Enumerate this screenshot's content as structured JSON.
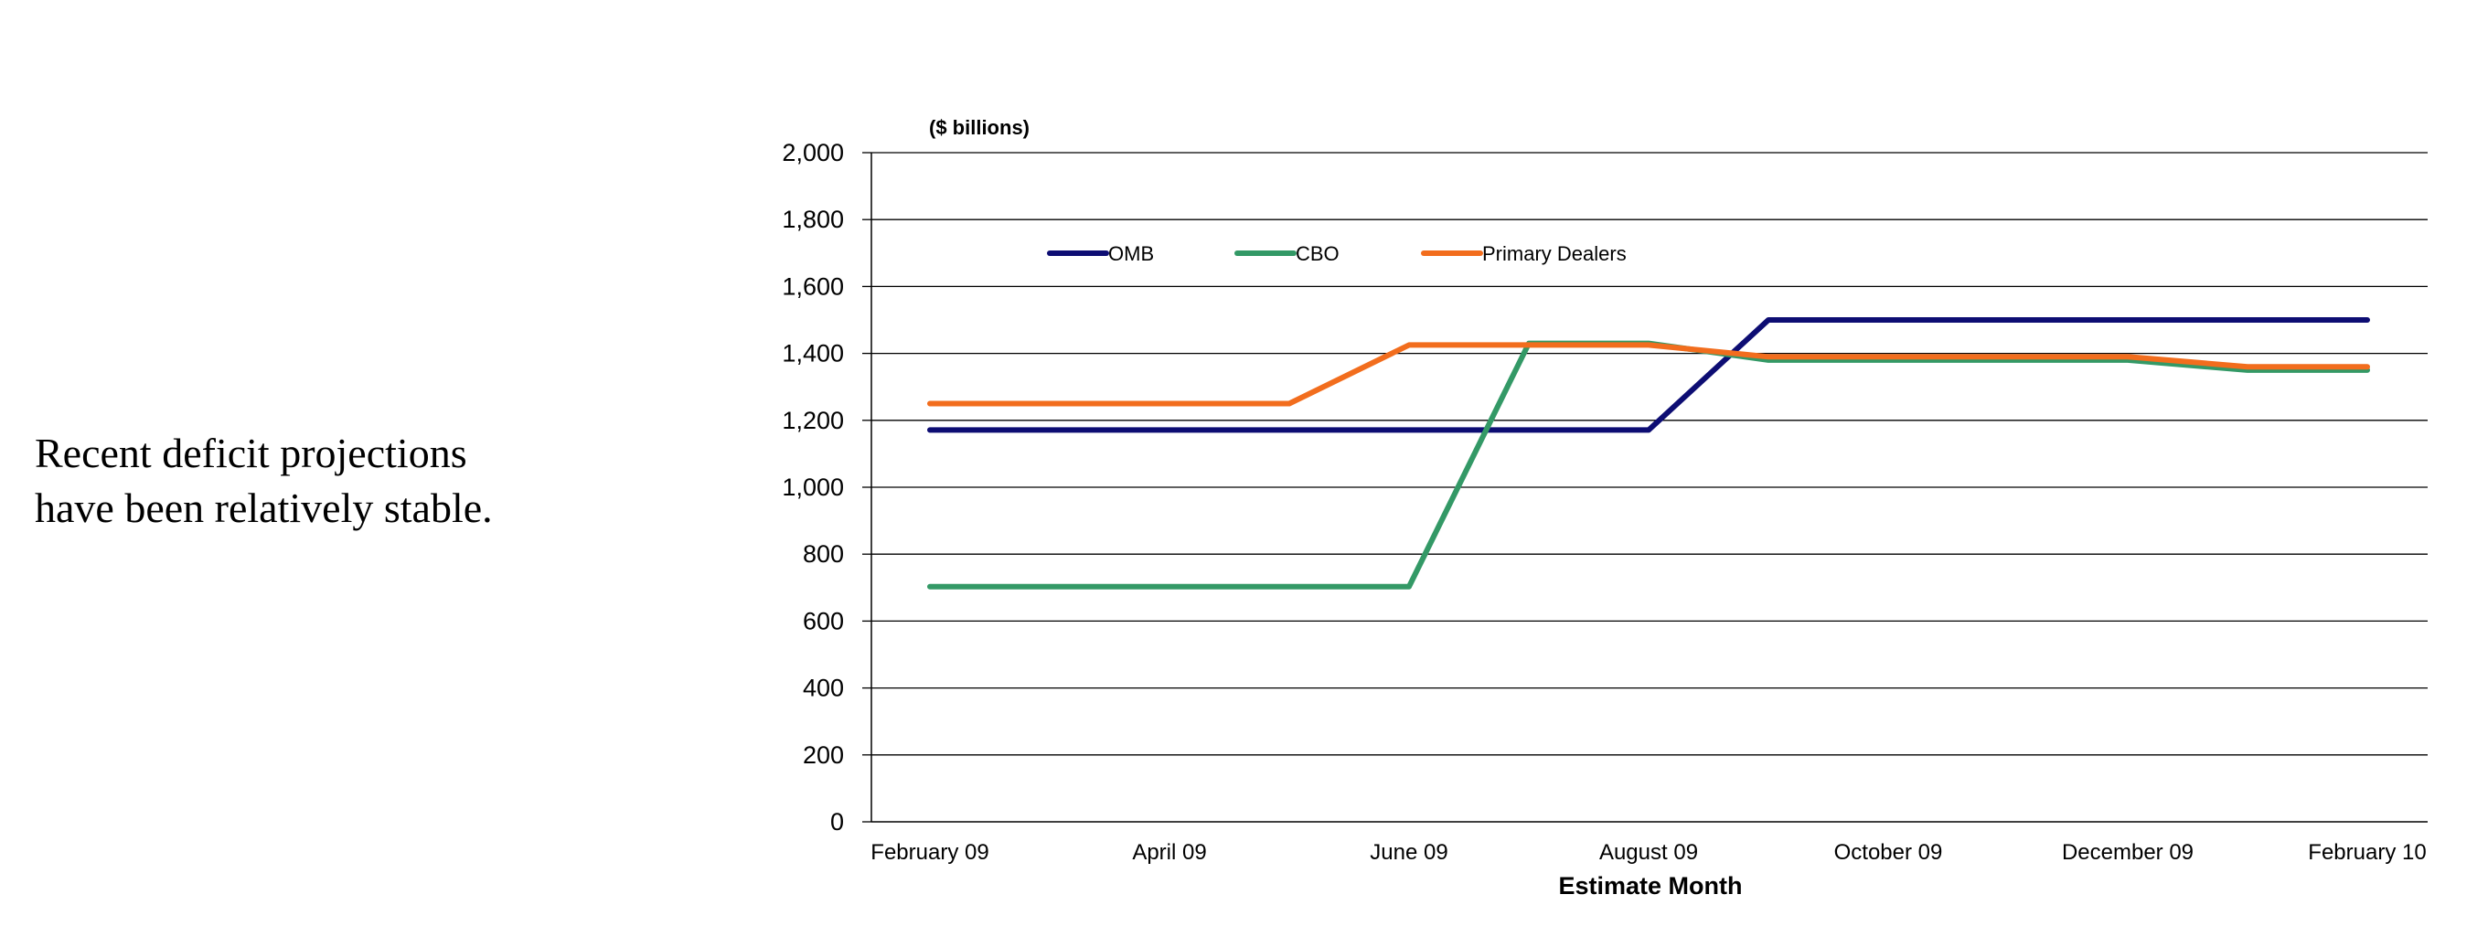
{
  "caption": "Recent deficit projections have been relatively stable.",
  "chart_data": {
    "type": "line",
    "unit_label": "($ billions)",
    "xlabel": "Estimate Month",
    "ylabel": "",
    "ylim": [
      0,
      2000
    ],
    "y_ticks": [
      "0",
      "200",
      "400",
      "600",
      "800",
      "1,000",
      "1,200",
      "1,400",
      "1,600",
      "1,800",
      "2,000"
    ],
    "x_tick_labels": [
      "February 09",
      "April 09",
      "June 09",
      "August 09",
      "October 09",
      "December 09",
      "February 10"
    ],
    "x": [
      "Feb 09",
      "Mar 09",
      "Apr 09",
      "May 09",
      "Jun 09",
      "Jul 09",
      "Aug 09",
      "Sep 09",
      "Oct 09",
      "Nov 09",
      "Dec 09",
      "Jan 10",
      "Feb 10"
    ],
    "grid": true,
    "legend_position": "top-left",
    "series": [
      {
        "name": "OMB",
        "color": "#0d0d73",
        "values": [
          1171,
          1171,
          1171,
          1171,
          1171,
          1171,
          1171,
          1500,
          1500,
          1500,
          1500,
          1500,
          1500
        ]
      },
      {
        "name": "CBO",
        "color": "#339966",
        "values": [
          703,
          703,
          703,
          703,
          703,
          1430,
          1430,
          1380,
          1380,
          1380,
          1380,
          1350,
          1350
        ]
      },
      {
        "name": "Primary Dealers",
        "color": "#f26d1d",
        "values": [
          1250,
          1250,
          1250,
          1250,
          1425,
          1425,
          1425,
          1390,
          1390,
          1390,
          1390,
          1360,
          1360
        ]
      }
    ]
  }
}
